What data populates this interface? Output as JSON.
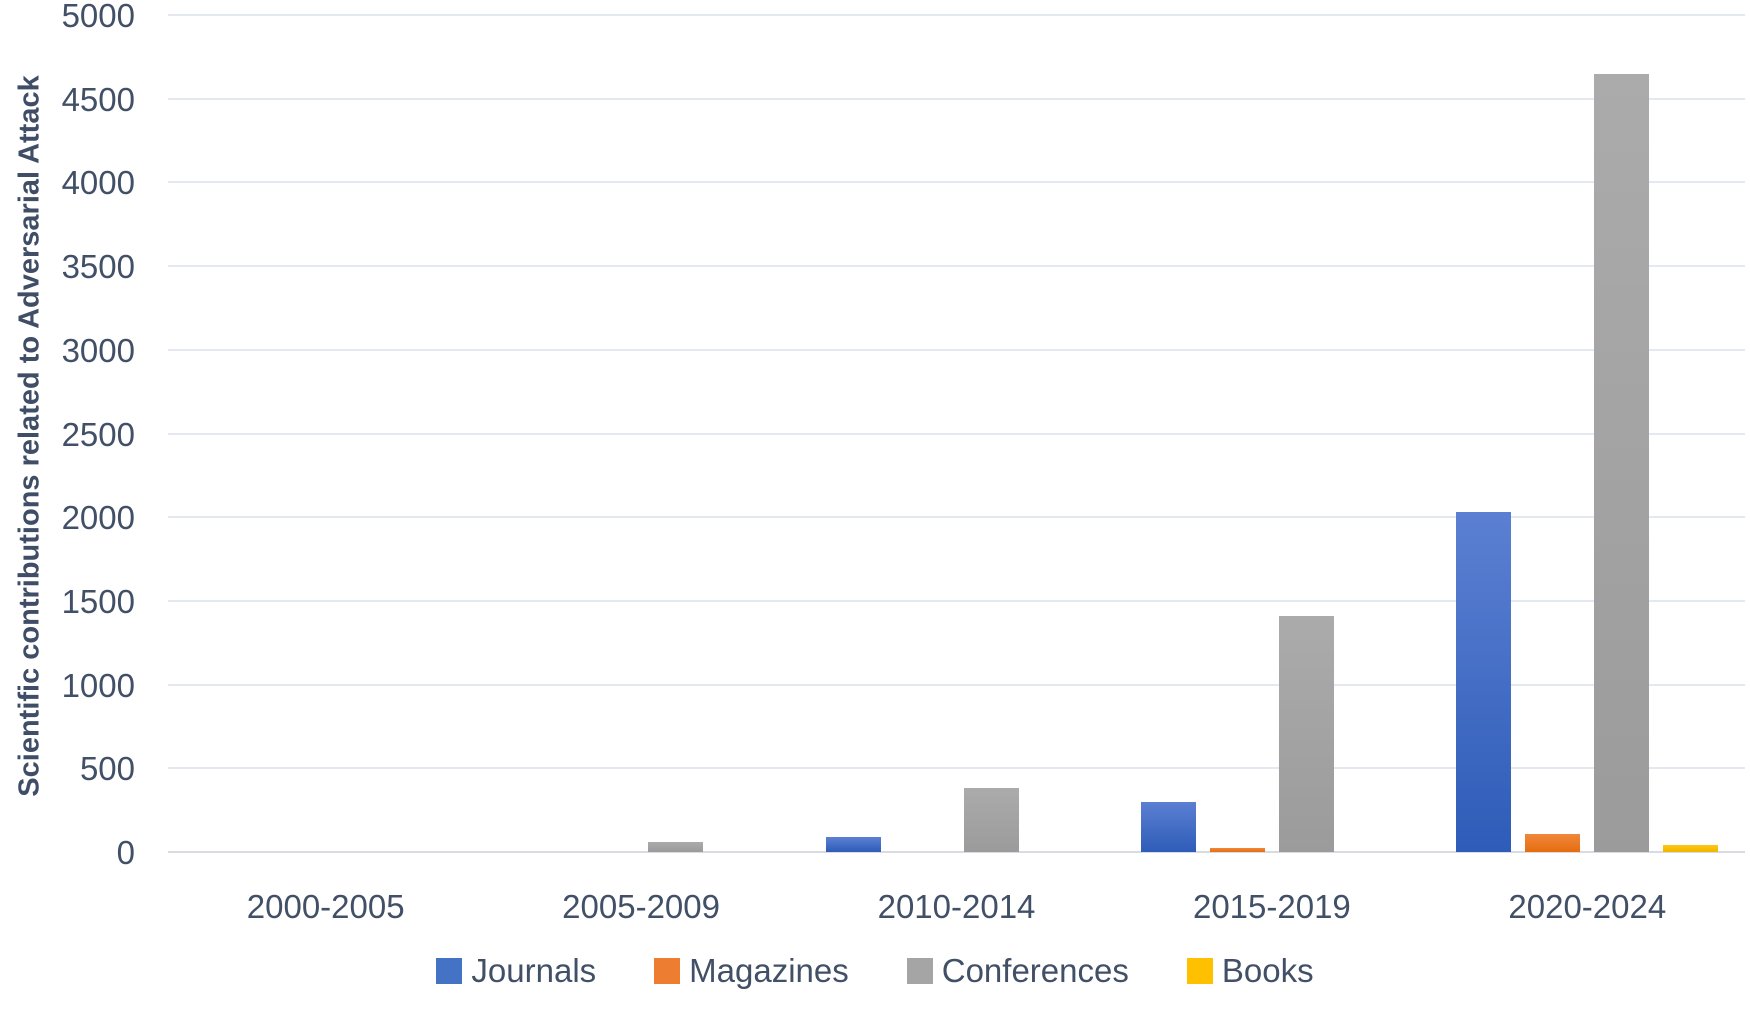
{
  "chart_data": {
    "type": "bar",
    "title": "",
    "xlabel": "",
    "ylabel": "Scientific contributions related to Adversarial Attack",
    "categories": [
      "2000-2005",
      "2005-2009",
      "2010-2014",
      "2015-2019",
      "2020-2024"
    ],
    "series": [
      {
        "name": "Journals",
        "values": [
          0,
          0,
          90,
          300,
          2030
        ],
        "color": "#4472C4",
        "color_top": "#5b80d2",
        "color_bottom": "#2e5cb8"
      },
      {
        "name": "Magazines",
        "values": [
          0,
          0,
          0,
          25,
          110
        ],
        "color": "#ED7D31",
        "color_top": "#f0873c",
        "color_bottom": "#e66d0e"
      },
      {
        "name": "Conferences",
        "values": [
          0,
          60,
          380,
          1410,
          4650
        ],
        "color": "#A5A5A5",
        "color_top": "#ababab",
        "color_bottom": "#9b9b9b"
      },
      {
        "name": "Books",
        "values": [
          0,
          0,
          0,
          0,
          40
        ],
        "color": "#FFC000",
        "color_top": "#ffc713",
        "color_bottom": "#f0b400"
      }
    ],
    "ylim": [
      0,
      5000
    ],
    "yticks": [
      0,
      500,
      1000,
      1500,
      2000,
      2500,
      3000,
      3500,
      4000,
      4500,
      5000
    ],
    "grid": true,
    "legend_position": "bottom"
  },
  "colors": {
    "background": "#ffffff",
    "text": "#415067",
    "axis_title": "#3f4e66",
    "gridline": "#e4e8f0",
    "baseline": "#d8dbe2"
  }
}
